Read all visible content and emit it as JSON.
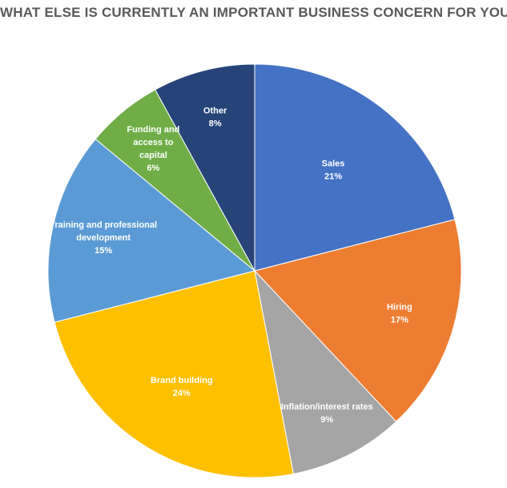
{
  "chart_data": {
    "type": "pie",
    "title": "WHAT ELSE IS CURRENTLY AN IMPORTANT BUSINESS CONCERN FOR YOU?",
    "slices": [
      {
        "label": "Sales",
        "percent_label": "21%",
        "value": 21,
        "color": "#4472C4"
      },
      {
        "label": "Hiring",
        "percent_label": "17%",
        "value": 17,
        "color": "#ED7D31"
      },
      {
        "label": "Inflation/interest rates",
        "percent_label": "9%",
        "value": 9,
        "color": "#A5A5A5"
      },
      {
        "label": "Brand building",
        "percent_label": "24%",
        "value": 24,
        "color": "#FFC000"
      },
      {
        "label": "Training and professional development",
        "percent_label": "15%",
        "value": 15,
        "color": "#5B9BD5"
      },
      {
        "label": "Funding and access to capital",
        "percent_label": "6%",
        "value": 6,
        "color": "#70AD47"
      },
      {
        "label": "Other",
        "percent_label": "8%",
        "value": 8,
        "color": "#264478"
      }
    ]
  }
}
